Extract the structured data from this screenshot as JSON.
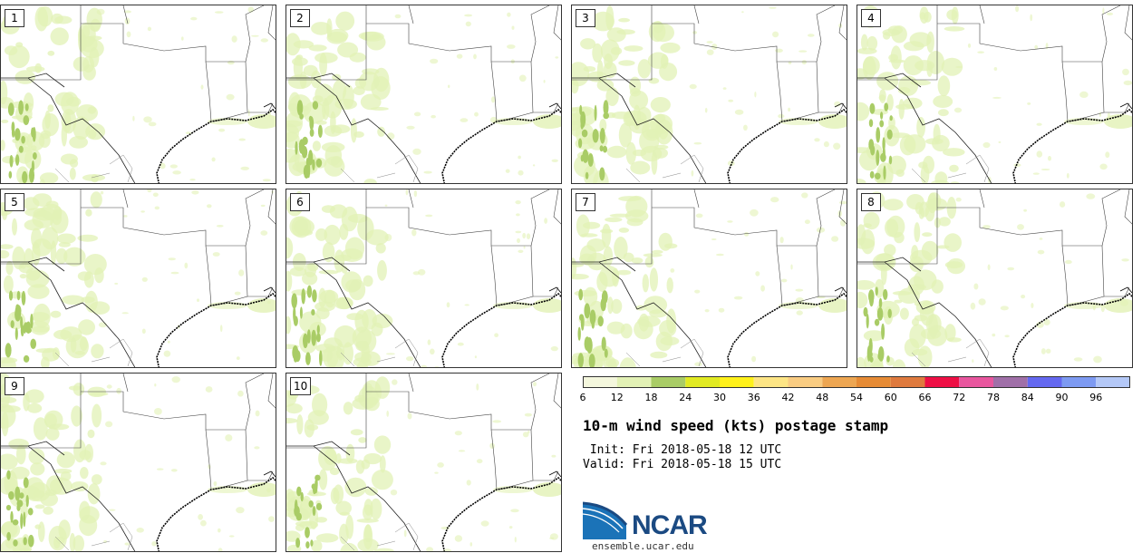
{
  "panels": [
    {
      "label": "1"
    },
    {
      "label": "2"
    },
    {
      "label": "3"
    },
    {
      "label": "4"
    },
    {
      "label": "5"
    },
    {
      "label": "6"
    },
    {
      "label": "7"
    },
    {
      "label": "8"
    },
    {
      "label": "9"
    },
    {
      "label": "10"
    }
  ],
  "colorbar": {
    "colors": [
      "#f4f7dd",
      "#e2f1b5",
      "#a9cc66",
      "#e1ea22",
      "#fff11a",
      "#fde585",
      "#f9cc82",
      "#eda652",
      "#e68b35",
      "#df7a3e",
      "#ee0f45",
      "#e8569e",
      "#a06fa8",
      "#6468f0",
      "#7d9af2",
      "#b4c8f7"
    ],
    "labels": [
      "6",
      "12",
      "18",
      "24",
      "30",
      "36",
      "42",
      "48",
      "54",
      "60",
      "66",
      "72",
      "78",
      "84",
      "90",
      "96"
    ]
  },
  "title": "10-m wind speed (kts) postage stamp",
  "init": " Init: Fri 2018-05-18 12 UTC",
  "valid": "Valid: Fri 2018-05-18 15 UTC",
  "logo": {
    "text": "NCAR",
    "site": "ensemble.ucar.edu",
    "color": "#1b4a82"
  }
}
